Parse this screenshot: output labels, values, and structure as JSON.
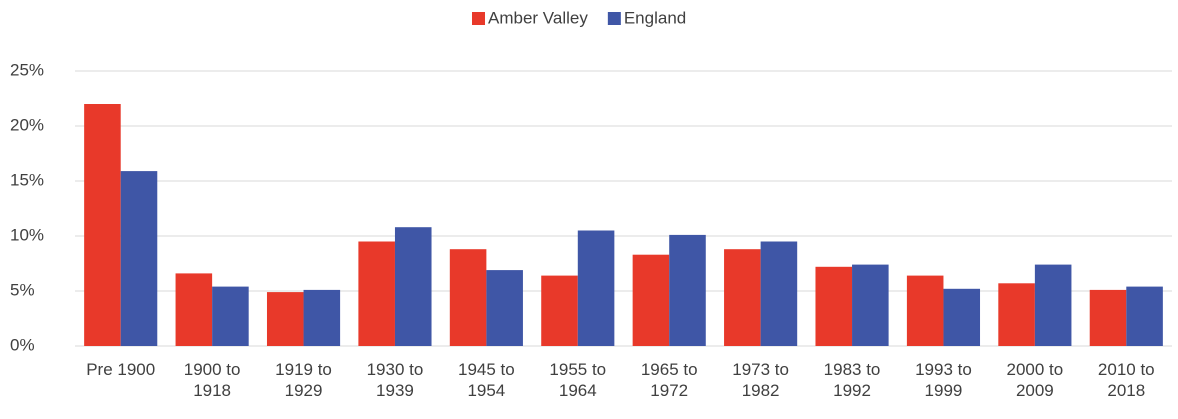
{
  "chart_data": {
    "type": "bar",
    "categories": [
      "Pre 1900",
      "1900 to 1918",
      "1919 to 1929",
      "1930 to 1939",
      "1945 to 1954",
      "1955 to 1964",
      "1965 to 1972",
      "1973 to 1982",
      "1983 to 1992",
      "1993 to 1999",
      "2000 to 2009",
      "2010 to 2018"
    ],
    "series": [
      {
        "name": "Amber Valley",
        "color": "#e8392a",
        "values": [
          22.0,
          6.6,
          4.9,
          9.5,
          8.8,
          6.4,
          8.3,
          8.8,
          7.2,
          6.4,
          5.7,
          5.1
        ]
      },
      {
        "name": "England",
        "color": "#3f56a6",
        "values": [
          15.9,
          5.4,
          5.1,
          10.8,
          6.9,
          10.5,
          10.1,
          9.5,
          7.4,
          5.2,
          7.4,
          5.4
        ]
      }
    ],
    "ylim": [
      0,
      25
    ],
    "yticks": [
      {
        "value": 0,
        "label": "0%"
      },
      {
        "value": 5,
        "label": "5%"
      },
      {
        "value": 10,
        "label": "10%"
      },
      {
        "value": 15,
        "label": "15%"
      },
      {
        "value": 20,
        "label": "20%"
      },
      {
        "value": 25,
        "label": "25%"
      }
    ],
    "grid": true,
    "legend": "top"
  }
}
